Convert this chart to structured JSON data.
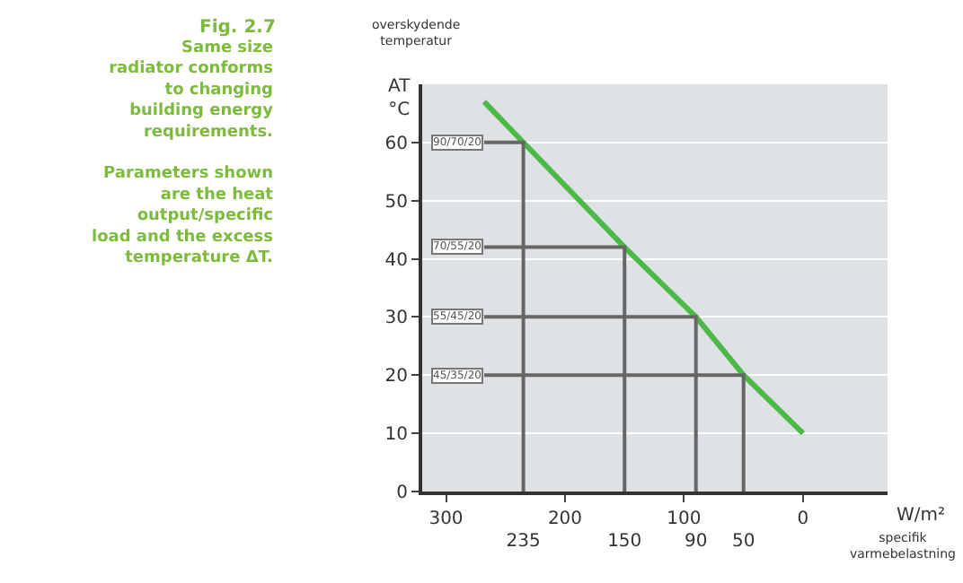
{
  "chart_data": {
    "type": "line",
    "title": "Fig. 2.7",
    "subtitle": "Same size\nradiator conforms\nto changing\nbuilding energy\nrequirements.\n\nParameters shown\nare the heat\noutput/specific\nload and the excess\ntemperature ΔT.",
    "xlabel": "W/m²",
    "ylabel": "AT °C",
    "annotations": [
      "overskydende temperatur",
      "specifik varmebelastning",
      "90/70/20",
      "70/55/20",
      "55/45/20",
      "45/35/20"
    ],
    "xlim": [
      320,
      -71
    ],
    "xticks": [
      300,
      200,
      100,
      0
    ],
    "x2lim": [
      320,
      -71
    ],
    "x2ticks": [
      235,
      150,
      90,
      50
    ],
    "ylim": [
      0,
      70
    ],
    "yticks": [
      0,
      10,
      20,
      30,
      40,
      50,
      60
    ],
    "grid": "y",
    "marker": "none",
    "line_style": "solid",
    "series": [
      {
        "color": "#4cb848",
        "x": [
          268,
          235,
          150,
          90,
          50,
          0
        ],
        "values": [
          67,
          60,
          42,
          30,
          20,
          10
        ]
      },
      {
        "color": "#666666",
        "x": [
          268,
          235,
          235
        ],
        "values": [
          60,
          60,
          0
        ]
      },
      {
        "color": "#666666",
        "x": [
          268,
          150,
          150
        ],
        "values": [
          42,
          42,
          0
        ]
      },
      {
        "color": "#666666",
        "x": [
          268,
          90,
          90
        ],
        "values": [
          30,
          30,
          0
        ]
      },
      {
        "color": "#666666",
        "x": [
          268,
          50,
          50
        ],
        "values": [
          20,
          20,
          0
        ]
      }
    ]
  }
}
